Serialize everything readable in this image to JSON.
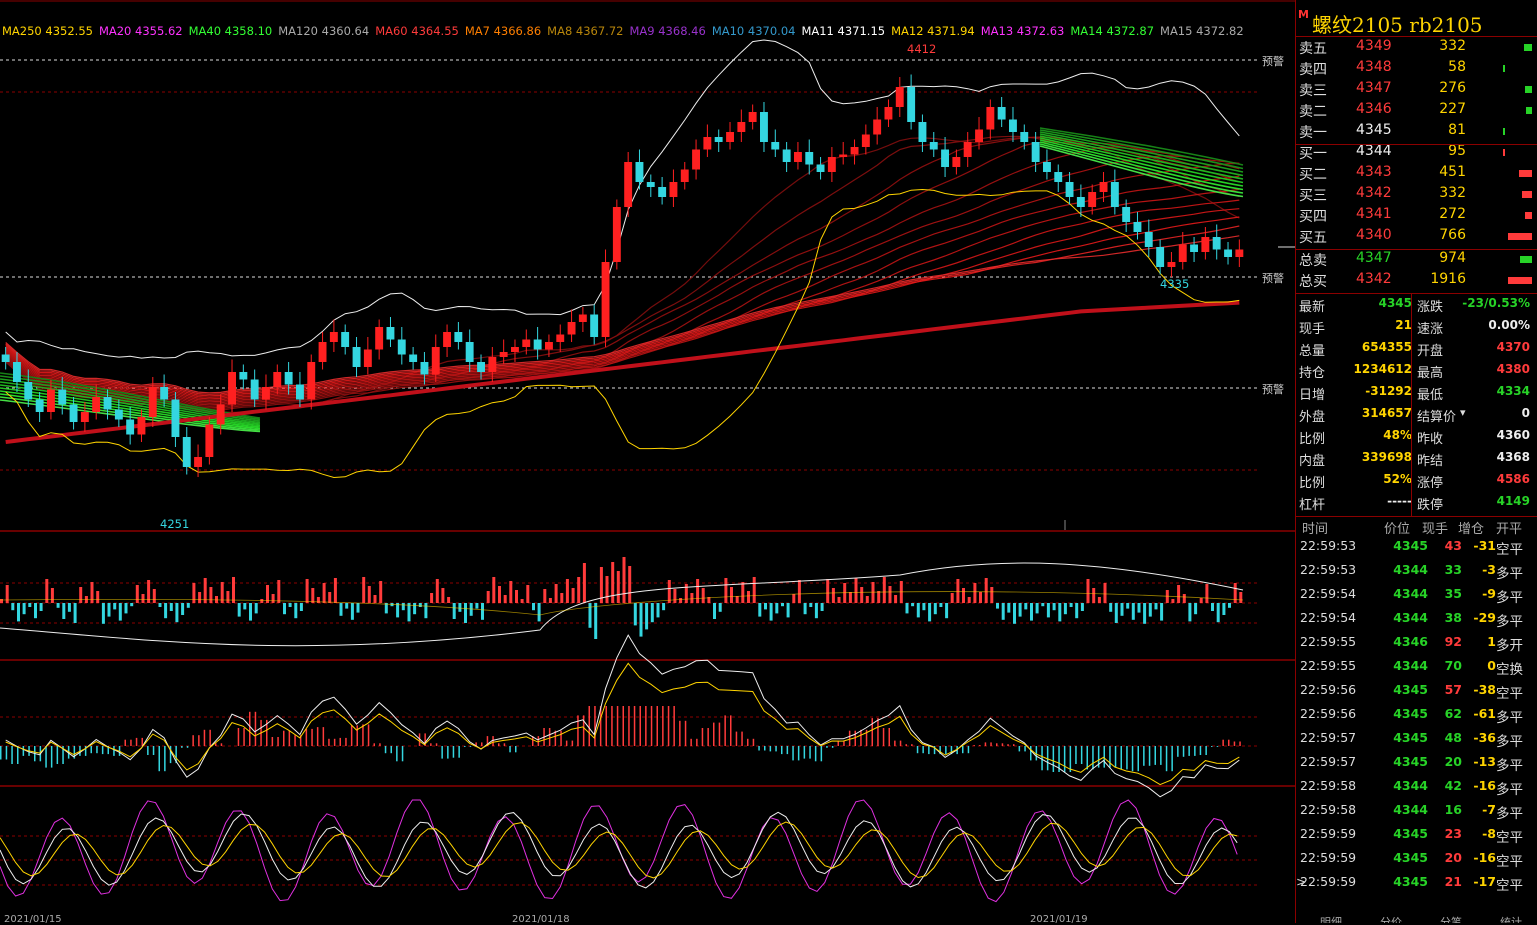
{
  "ma_header": [
    {
      "label": "MA250 4352.55",
      "color": "#ffd400"
    },
    {
      "label": "MA20 4355.62",
      "color": "#ff33ff"
    },
    {
      "label": "MA40 4358.10",
      "color": "#33ff33"
    },
    {
      "label": "MA120 4360.64",
      "color": "#aaaaaa"
    },
    {
      "label": "MA60 4364.55",
      "color": "#ff3b3b"
    },
    {
      "label": "MA7 4366.86",
      "color": "#ff7f00"
    },
    {
      "label": "MA8 4367.72",
      "color": "#b8860b"
    },
    {
      "label": "MA9 4368.46",
      "color": "#9932cc"
    },
    {
      "label": "MA10 4370.04",
      "color": "#3399cc"
    },
    {
      "label": "MA11 4371.15",
      "color": "#ffffff"
    },
    {
      "label": "MA12 4371.94",
      "color": "#ffd400"
    },
    {
      "label": "MA13 4372.63",
      "color": "#ff33ff"
    },
    {
      "label": "MA14 4372.87",
      "color": "#33ff33"
    },
    {
      "label": "MA15 4372.82",
      "color": "#aaaaaa"
    }
  ],
  "chart_labels": {
    "high": "4412",
    "low_recent": "4335",
    "low_left": "4251",
    "warning": "预警"
  },
  "x_ticks": [
    "2021/01/15",
    "2021/01/18",
    "2021/01/19"
  ],
  "instrument": {
    "mark": "M",
    "title": "螺纹2105  rb2105"
  },
  "order_book": {
    "asks": [
      {
        "label": "卖五",
        "price": "4349",
        "vol": "332",
        "bar": 0.35
      },
      {
        "label": "卖四",
        "price": "4348",
        "vol": "58",
        "bar": 0.05
      },
      {
        "label": "卖三",
        "price": "4347",
        "vol": "276",
        "bar": 0.3
      },
      {
        "label": "卖二",
        "price": "4346",
        "vol": "227",
        "bar": 0.25
      },
      {
        "label": "卖一",
        "price": "4345",
        "vol": "81",
        "bar": 0.08
      }
    ],
    "bids": [
      {
        "label": "买一",
        "price": "4344",
        "vol": "95",
        "bar": 0.08
      },
      {
        "label": "买二",
        "price": "4343",
        "vol": "451",
        "bar": 0.55
      },
      {
        "label": "买三",
        "price": "4342",
        "vol": "332",
        "bar": 0.4
      },
      {
        "label": "买四",
        "price": "4341",
        "vol": "272",
        "bar": 0.3
      },
      {
        "label": "买五",
        "price": "4340",
        "vol": "766",
        "bar": 1.0
      }
    ],
    "totals": [
      {
        "label": "总卖",
        "price": "4347",
        "vol": "974",
        "bar": 0.5,
        "color": "#27d327"
      },
      {
        "label": "总买",
        "price": "4342",
        "vol": "1916",
        "bar": 1.0,
        "color": "#ff3b3b"
      }
    ]
  },
  "quote": [
    {
      "l1": "最新",
      "v1": "4345",
      "c1": "green",
      "l2": "涨跌",
      "v2": "-23/0.53%",
      "c2": "green"
    },
    {
      "l1": "现手",
      "v1": "21",
      "c1": "yellow",
      "l2": "速涨",
      "v2": "0.00%",
      "c2": "white"
    },
    {
      "l1": "总量",
      "v1": "654355",
      "c1": "yellow",
      "l2": "开盘",
      "v2": "4370",
      "c2": "red"
    },
    {
      "l1": "持仓",
      "v1": "1234612",
      "c1": "yellow",
      "l2": "最高",
      "v2": "4380",
      "c2": "red"
    },
    {
      "l1": "日增",
      "v1": "-31292",
      "c1": "yellow",
      "l2": "最低",
      "v2": "4334",
      "c2": "green"
    },
    {
      "l1": "外盘",
      "v1": "314657",
      "c1": "yellow",
      "l2": "结算价",
      "v2": "0",
      "c2": "white"
    },
    {
      "l1": "比例",
      "v1": "48%",
      "c1": "yellow",
      "l2": "昨收",
      "v2": "4360",
      "c2": "white"
    },
    {
      "l1": "内盘",
      "v1": "339698",
      "c1": "yellow",
      "l2": "昨结",
      "v2": "4368",
      "c2": "white"
    },
    {
      "l1": "比例",
      "v1": "52%",
      "c1": "yellow",
      "l2": "涨停",
      "v2": "4586",
      "c2": "red"
    },
    {
      "l1": "杠杆",
      "v1": "-----",
      "c1": "white",
      "l2": "跌停",
      "v2": "4149",
      "c2": "green"
    }
  ],
  "tick_headers": {
    "time": "时间",
    "price": "价位",
    "qty": "现手",
    "oi": "增仓",
    "type": "开平"
  },
  "ticks": [
    {
      "time": "22:59:53",
      "price": "4345",
      "qty": "43",
      "qc": "red",
      "oi": "-31",
      "type": "空平"
    },
    {
      "time": "22:59:53",
      "price": "4344",
      "qty": "33",
      "qc": "green",
      "oi": "-3",
      "type": "多平"
    },
    {
      "time": "22:59:54",
      "price": "4344",
      "qty": "35",
      "qc": "green",
      "oi": "-9",
      "type": "多平"
    },
    {
      "time": "22:59:54",
      "price": "4344",
      "qty": "38",
      "qc": "green",
      "oi": "-29",
      "type": "多平"
    },
    {
      "time": "22:59:55",
      "price": "4346",
      "qty": "92",
      "qc": "red",
      "oi": "1",
      "type": "多开"
    },
    {
      "time": "22:59:55",
      "price": "4344",
      "qty": "70",
      "qc": "green",
      "oi": "0",
      "type": "空换"
    },
    {
      "time": "22:59:56",
      "price": "4345",
      "qty": "57",
      "qc": "red",
      "oi": "-38",
      "type": "空平"
    },
    {
      "time": "22:59:56",
      "price": "4345",
      "qty": "62",
      "qc": "green",
      "oi": "-61",
      "type": "多平"
    },
    {
      "time": "22:59:57",
      "price": "4345",
      "qty": "48",
      "qc": "green",
      "oi": "-36",
      "type": "多平"
    },
    {
      "time": "22:59:57",
      "price": "4345",
      "qty": "20",
      "qc": "green",
      "oi": "-13",
      "type": "多平"
    },
    {
      "time": "22:59:58",
      "price": "4344",
      "qty": "42",
      "qc": "green",
      "oi": "-16",
      "type": "多平"
    },
    {
      "time": "22:59:58",
      "price": "4344",
      "qty": "16",
      "qc": "green",
      "oi": "-7",
      "type": "多平"
    },
    {
      "time": "22:59:59",
      "price": "4345",
      "qty": "23",
      "qc": "red",
      "oi": "-8",
      "type": "空平"
    },
    {
      "time": "22:59:59",
      "price": "4345",
      "qty": "20",
      "qc": "red",
      "oi": "-16",
      "type": "空平"
    },
    {
      "time": "22:59:59",
      "price": "4345",
      "qty": "21",
      "qc": "red",
      "oi": "-17",
      "type": "空平",
      "marker": ">"
    }
  ],
  "bottom_tabs": [
    "明细",
    "分价",
    "分笔",
    "统计"
  ],
  "chart_data": {
    "type": "candlestick",
    "price_range": [
      4240,
      4420
    ],
    "high": 4412,
    "low": 4251,
    "recent_low": 4335,
    "last": 4345,
    "close_series": [
      4300,
      4292,
      4285,
      4280,
      4289,
      4283,
      4276,
      4280,
      4286,
      4281,
      4277,
      4271,
      4278,
      4290,
      4285,
      4270,
      4258,
      4262,
      4275,
      4283,
      4296,
      4293,
      4285,
      4290,
      4296,
      4291,
      4285,
      4300,
      4308,
      4312,
      4306,
      4298,
      4305,
      4314,
      4309,
      4303,
      4300,
      4295,
      4306,
      4312,
      4308,
      4300,
      4296,
      4302,
      4304,
      4306,
      4309,
      4305,
      4308,
      4311,
      4316,
      4319,
      4310,
      4340,
      4362,
      4380,
      4372,
      4370,
      4366,
      4372,
      4377,
      4385,
      4390,
      4388,
      4392,
      4396,
      4400,
      4388,
      4385,
      4380,
      4384,
      4379,
      4376,
      4382,
      4383,
      4386,
      4391,
      4397,
      4402,
      4410,
      4396,
      4388,
      4385,
      4378,
      4382,
      4388,
      4393,
      4402,
      4397,
      4392,
      4388,
      4380,
      4376,
      4372,
      4366,
      4362,
      4368,
      4372,
      4362,
      4356,
      4352,
      4346,
      4338,
      4340,
      4347,
      4344,
      4350,
      4345,
      4342,
      4345
    ]
  }
}
